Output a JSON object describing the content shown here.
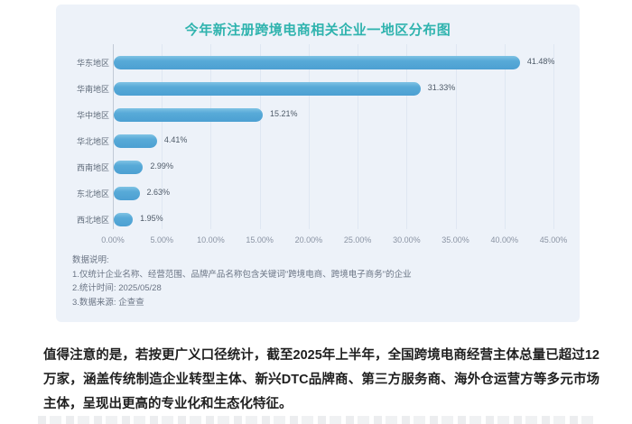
{
  "chart": {
    "title": "今年新注册跨境电商相关企业一地区分布图",
    "bar_color": "#58aad8",
    "title_color": "#2fb3ae"
  },
  "chart_data": {
    "type": "bar",
    "orientation": "horizontal",
    "title": "今年新注册跨境电商相关企业一地区分布图",
    "categories": [
      "华东地区",
      "华南地区",
      "华中地区",
      "华北地区",
      "西南地区",
      "东北地区",
      "西北地区"
    ],
    "values": [
      41.48,
      31.33,
      15.21,
      4.41,
      2.99,
      2.63,
      1.95
    ],
    "data_labels": [
      "41.48%",
      "31.33%",
      "15.21%",
      "4.41%",
      "2.99%",
      "2.63%",
      "1.95%"
    ],
    "xlabel": "",
    "ylabel": "",
    "xlim": [
      0,
      45
    ],
    "x_ticks": [
      "0.00%",
      "5.00%",
      "10.00%",
      "15.00%",
      "20.00%",
      "25.00%",
      "30.00%",
      "35.00%",
      "40.00%",
      "45.00%"
    ],
    "grid": "vertical-faint",
    "legend": "none"
  },
  "notes": {
    "heading": "数据说明:",
    "lines": [
      "1.仅统计企业名称、经营范围、品牌产品名称包含关键词\"跨境电商、跨境电子商务\"的企业",
      "2.统计时间: 2025/05/28",
      "3.数据来源: 企查查"
    ]
  },
  "paragraph": "值得注意的是，若按更广义口径统计，截至2025年上半年，全国跨境电商经营主体总量已超过12万家，涵盖传统制造企业转型主体、新兴DTC品牌商、第三方服务商、海外仓运营方等多元市场主体，呈现出更高的专业化和生态化特征。"
}
